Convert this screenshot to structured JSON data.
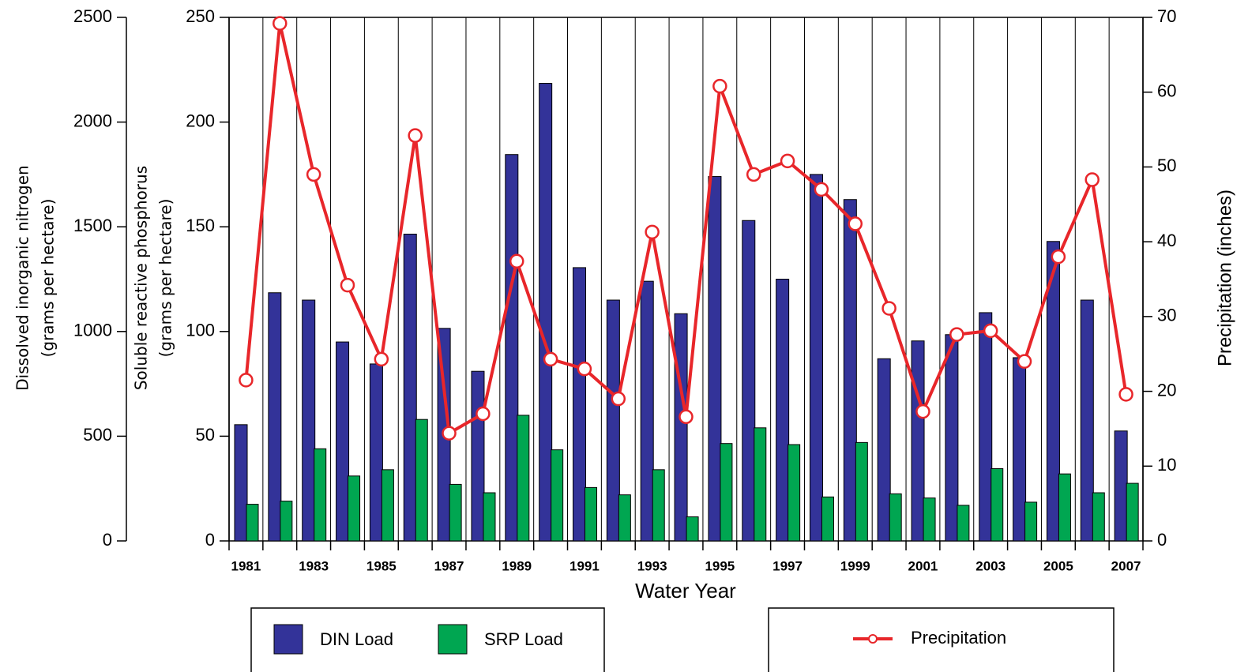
{
  "chart_data": {
    "type": "bar",
    "x_label": "Water Year",
    "y_label": [
      "Soluble reactive phosphorus",
      "(grams per hectare)"
    ],
    "y2_label": "Precipitation (inches)",
    "y3_label": [
      "Dissolved inorganic nitrogen",
      "(grams per hectare)"
    ],
    "categories": [
      "1981",
      null,
      "1983",
      null,
      "1985",
      null,
      "1987",
      null,
      "1989",
      null,
      "1991",
      null,
      "1993",
      null,
      "1995",
      null,
      "1997",
      null,
      "1999",
      null,
      "2001",
      null,
      "2003",
      null,
      "2005",
      null,
      "2007"
    ],
    "series": [
      {
        "name": "DIN Load",
        "type": "bar",
        "axis": "y3",
        "color": "#333399",
        "values": [
          555,
          1185,
          1150,
          950,
          845,
          1465,
          1015,
          810,
          1845,
          2185,
          1305,
          1150,
          1240,
          1085,
          1740,
          1530,
          1250,
          1750,
          1630,
          870,
          955,
          985,
          1090,
          875,
          1430,
          1150,
          525
        ]
      },
      {
        "name": "SRP Load",
        "type": "bar",
        "axis": "y",
        "color": "#00a651",
        "values": [
          17.5,
          19,
          44,
          31,
          34,
          58,
          27,
          23,
          60,
          43.5,
          25.5,
          22,
          34,
          11.5,
          46.5,
          54,
          46,
          21,
          47,
          22.5,
          20.5,
          17,
          34.5,
          18.5,
          32,
          23,
          27.5
        ]
      },
      {
        "name": "Precipitation",
        "type": "line",
        "axis": "y2",
        "color": "#e8262a",
        "values": [
          21.5,
          69.2,
          49,
          34.2,
          24.3,
          54.2,
          14.4,
          17,
          37.4,
          24.3,
          23,
          19,
          41.3,
          16.6,
          60.8,
          49,
          50.8,
          47,
          42.4,
          31.1,
          17.3,
          27.6,
          28.1,
          24,
          38,
          48.3,
          19.6
        ]
      }
    ],
    "ylim": [
      0,
      250
    ],
    "yticks": [
      0,
      50,
      100,
      150,
      200,
      250
    ],
    "y2lim": [
      0,
      70
    ],
    "y2ticks": [
      0,
      10,
      20,
      30,
      40,
      50,
      60,
      70
    ],
    "y3lim": [
      0,
      2500
    ],
    "y3ticks": [
      0,
      500,
      1000,
      1500,
      2000,
      2500
    ],
    "xgrid": true,
    "legend": "bottom"
  }
}
